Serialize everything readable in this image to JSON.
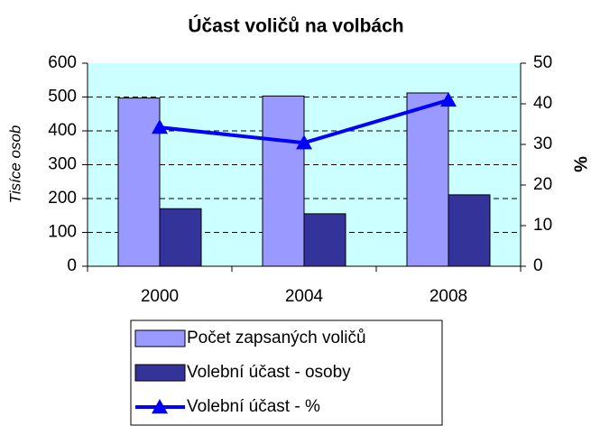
{
  "chart_data": {
    "type": "bar",
    "title": "Účast voličů na volbách",
    "ylabel": "Tisíce osob",
    "y2label": "%",
    "categories": [
      "2000",
      "2004",
      "2008"
    ],
    "series": [
      {
        "name": "Počet zapsaných voličů",
        "color": "#9999ff",
        "values": [
          497,
          503,
          512
        ]
      },
      {
        "name": "Volební účast - osoby",
        "color": "#333399",
        "values": [
          170,
          155,
          211
        ]
      },
      {
        "name": "Volební účast - %",
        "color": "#0000ff",
        "type": "line",
        "axis": "y2",
        "values": [
          34.2,
          30.4,
          40.9
        ]
      }
    ],
    "ylim": [
      0,
      600
    ],
    "yticks": [
      0,
      100,
      200,
      300,
      400,
      500,
      600
    ],
    "y2lim": [
      0,
      50
    ],
    "y2ticks": [
      0,
      10,
      20,
      30,
      40,
      50
    ],
    "grid": true,
    "plot_background": "#ccffff",
    "legend": "bottom"
  }
}
